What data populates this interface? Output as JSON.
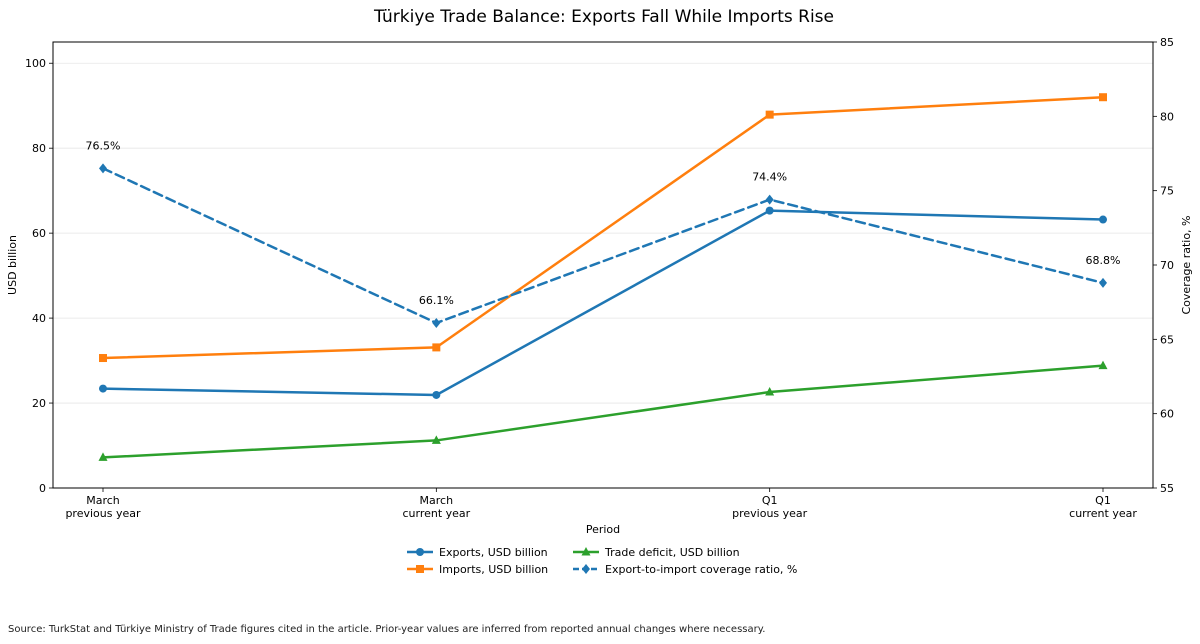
{
  "chart_data": {
    "type": "line",
    "title": "Türkiye Trade Balance: Exports Fall While Imports Rise",
    "xlabel": "Period",
    "ylabel": "USD billion",
    "y2label": "Coverage ratio, %",
    "categories": [
      [
        "March",
        "previous year"
      ],
      [
        "March",
        "current year"
      ],
      [
        "Q1",
        "previous year"
      ],
      [
        "Q1",
        "current year"
      ]
    ],
    "ylim": [
      0,
      105
    ],
    "yticks": [
      0,
      20,
      40,
      60,
      80,
      100
    ],
    "y2lim": [
      55,
      85
    ],
    "y2ticks": [
      55,
      60,
      65,
      70,
      75,
      80,
      85
    ],
    "grid": true,
    "legend_placement": "bottom-center",
    "series": [
      {
        "name": "Exports, USD billion",
        "axis": "left",
        "color": "#1f77b4",
        "marker": "circle",
        "dashed": false,
        "values": [
          23.4,
          21.9,
          65.3,
          63.2
        ]
      },
      {
        "name": "Imports, USD billion",
        "axis": "left",
        "color": "#ff7f0e",
        "marker": "square",
        "dashed": false,
        "values": [
          30.6,
          33.1,
          87.9,
          92.0
        ]
      },
      {
        "name": "Trade deficit, USD billion",
        "axis": "left",
        "color": "#2ca02c",
        "marker": "triangle",
        "dashed": false,
        "values": [
          7.2,
          11.2,
          22.6,
          28.8
        ]
      },
      {
        "name": "Export-to-import coverage ratio, %",
        "axis": "right",
        "color": "#1f77b4",
        "marker": "diamond",
        "dashed": true,
        "values": [
          76.5,
          66.1,
          74.4,
          68.8
        ],
        "labels": [
          "76.5%",
          "66.1%",
          "74.4%",
          "68.8%"
        ]
      }
    ]
  },
  "source_note": "Source: TurkStat and Türkiye Ministry of Trade figures cited in the article. Prior-year values are inferred from reported annual changes where necessary."
}
